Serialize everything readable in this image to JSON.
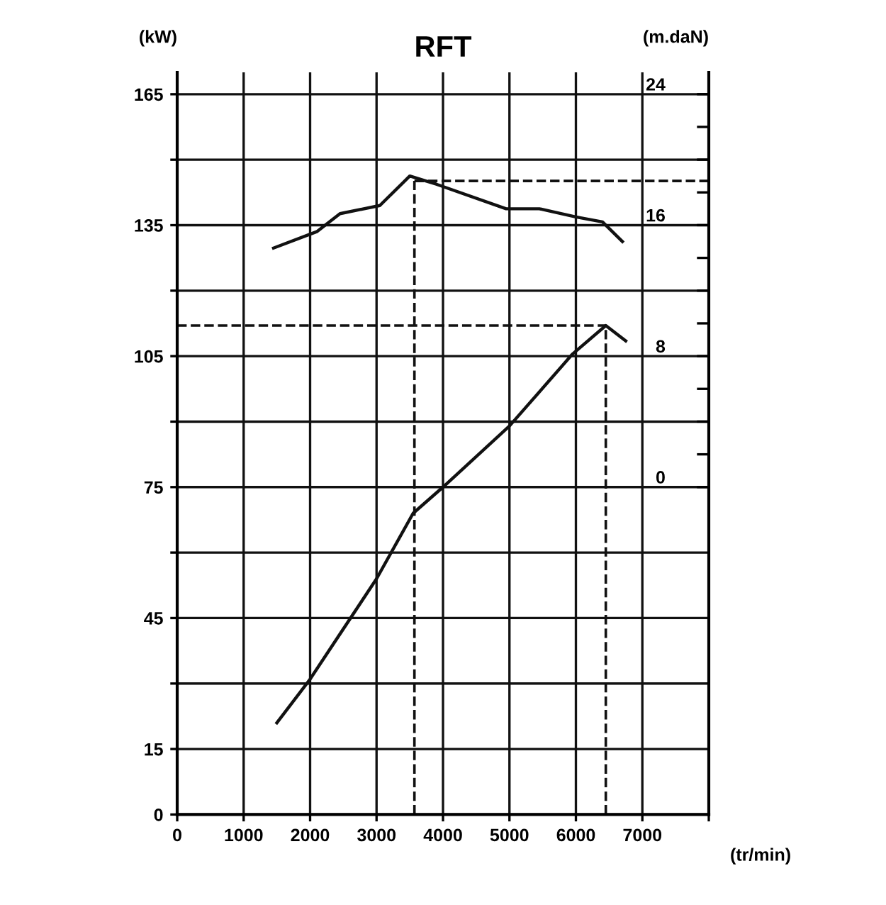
{
  "chart_data": {
    "type": "line",
    "title": "RFT",
    "xlabel": "(tr/min)",
    "ylabel": "(kW)",
    "y2label": "(m.daN)",
    "series": [
      {
        "color": "#111111",
        "x": [
          1500,
          2000,
          3000,
          3550,
          4000,
          5000,
          5950,
          6450,
          6750
        ],
        "values": [
          21,
          31,
          54,
          69,
          75,
          89,
          105.5,
          112,
          108.5
        ]
      },
      {
        "color": "#111111",
        "axis": "y2",
        "x": [
          1450,
          2100,
          2450,
          3050,
          3500,
          3900,
          4950,
          5450,
          6000,
          6400,
          6700
        ],
        "values": [
          14.6,
          15.6,
          16.7,
          17.2,
          19,
          18.5,
          17,
          17,
          16.5,
          16.2,
          15
        ]
      }
    ],
    "ref_lines": [
      {
        "axis": "x",
        "value": 3570,
        "line_style": "dashed",
        "color": "#111111"
      },
      {
        "axis": "y2",
        "value": 18.7,
        "line_style": "dashed",
        "color": "#111111"
      },
      {
        "axis": "x",
        "value": 6450,
        "line_style": "dashed",
        "color": "#111111"
      },
      {
        "axis": "y",
        "value": 112,
        "line_style": "dashed",
        "color": "#111111"
      }
    ],
    "xlim": [
      0,
      8000
    ],
    "xticks": [
      0,
      1000,
      2000,
      3000,
      4000,
      5000,
      6000,
      7000,
      {
        "value": 8000,
        "label": null
      }
    ],
    "ylim": [
      0,
      170
    ],
    "yticks": [
      0,
      15,
      {
        "value": 30,
        "label": null
      },
      45,
      {
        "value": 60,
        "label": null
      },
      75,
      {
        "value": 90,
        "label": null
      },
      105,
      {
        "value": 120,
        "label": null
      },
      135,
      {
        "value": 150,
        "label": null
      },
      165
    ],
    "y2lim": [
      -20,
      25.33
    ],
    "y2ticks": [
      0,
      {
        "value": 2,
        "label": null
      },
      {
        "value": 4,
        "label": null
      },
      {
        "value": 6,
        "label": null
      },
      8,
      {
        "value": 10,
        "label": null
      },
      {
        "value": 12,
        "label": null
      },
      {
        "value": 14,
        "label": null
      },
      16,
      {
        "value": 18,
        "label": null
      },
      {
        "value": 20,
        "label": null
      },
      {
        "value": 22,
        "label": null
      },
      24
    ],
    "grid": true,
    "marker": "none",
    "line_style": "solid",
    "legend": false
  }
}
